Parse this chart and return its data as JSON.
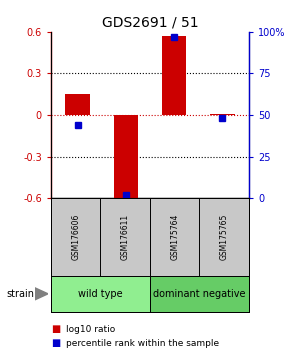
{
  "title": "GDS2691 / 51",
  "samples": [
    "GSM176606",
    "GSM176611",
    "GSM175764",
    "GSM175765"
  ],
  "log10_ratio": [
    0.15,
    -0.6,
    0.57,
    0.01
  ],
  "percentile_rank": [
    44,
    2,
    97,
    48
  ],
  "groups": [
    {
      "label": "wild type",
      "color": "#90ee90",
      "samples": [
        0,
        1
      ]
    },
    {
      "label": "dominant negative",
      "color": "#66cc66",
      "samples": [
        2,
        3
      ]
    }
  ],
  "ylim_left": [
    -0.6,
    0.6
  ],
  "ylim_right": [
    0,
    100
  ],
  "yticks_left": [
    -0.6,
    -0.3,
    0.0,
    0.3,
    0.6
  ],
  "yticks_right": [
    0,
    25,
    50,
    75,
    100
  ],
  "ytick_labels_right": [
    "0",
    "25",
    "50",
    "75",
    "100%"
  ],
  "bar_color": "#cc0000",
  "dot_color": "#0000cc",
  "bg_color": "#ffffff",
  "sample_box_color": "#c8c8c8",
  "bar_width": 0.5,
  "legend_bar_label": "log10 ratio",
  "legend_dot_label": "percentile rank within the sample",
  "strain_label": "strain"
}
